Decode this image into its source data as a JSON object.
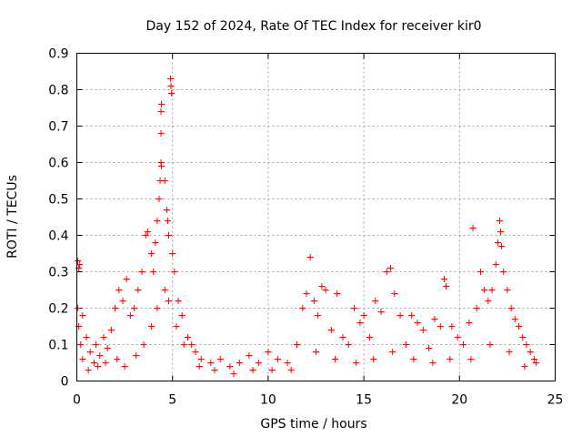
{
  "chart_data": {
    "type": "scatter",
    "title": "Day 152 of 2024, Rate Of TEC Index for receiver kir0",
    "xlabel": "GPS time / hours",
    "ylabel": "ROTI / TECUs",
    "xlim": [
      0,
      25
    ],
    "ylim": [
      0,
      0.9
    ],
    "xticks": [
      "0",
      "5",
      "10",
      "15",
      "20",
      "25"
    ],
    "xtick_values": [
      0,
      5,
      10,
      15,
      20,
      25
    ],
    "yticks": [
      "0",
      "0.1",
      "0.2",
      "0.3",
      "0.4",
      "0.5",
      "0.6",
      "0.7",
      "0.8",
      "0.9"
    ],
    "ytick_values": [
      0,
      0.1,
      0.2,
      0.3,
      0.4,
      0.5,
      0.6,
      0.7,
      0.8,
      0.9
    ],
    "grid": true,
    "marker": "+",
    "color": "#ff0000",
    "series": [
      {
        "name": "kir0",
        "points": [
          [
            0.05,
            0.33
          ],
          [
            0.1,
            0.31
          ],
          [
            0.15,
            0.32
          ],
          [
            0.05,
            0.2
          ],
          [
            0.1,
            0.15
          ],
          [
            0.2,
            0.1
          ],
          [
            0.3,
            0.18
          ],
          [
            0.5,
            0.12
          ],
          [
            0.7,
            0.08
          ],
          [
            0.9,
            0.05
          ],
          [
            1.0,
            0.1
          ],
          [
            1.2,
            0.07
          ],
          [
            1.4,
            0.12
          ],
          [
            1.6,
            0.09
          ],
          [
            1.8,
            0.14
          ],
          [
            2.0,
            0.2
          ],
          [
            2.2,
            0.25
          ],
          [
            2.4,
            0.22
          ],
          [
            2.6,
            0.28
          ],
          [
            2.8,
            0.18
          ],
          [
            3.0,
            0.2
          ],
          [
            3.2,
            0.25
          ],
          [
            3.4,
            0.3
          ],
          [
            3.6,
            0.4
          ],
          [
            3.7,
            0.41
          ],
          [
            3.9,
            0.35
          ],
          [
            4.0,
            0.3
          ],
          [
            4.1,
            0.38
          ],
          [
            4.2,
            0.44
          ],
          [
            4.3,
            0.5
          ],
          [
            4.35,
            0.55
          ],
          [
            4.4,
            0.6
          ],
          [
            4.42,
            0.59
          ],
          [
            4.4,
            0.68
          ],
          [
            4.4,
            0.74
          ],
          [
            4.42,
            0.76
          ],
          [
            4.6,
            0.55
          ],
          [
            4.7,
            0.47
          ],
          [
            4.75,
            0.44
          ],
          [
            4.8,
            0.4
          ],
          [
            4.9,
            0.83
          ],
          [
            4.92,
            0.81
          ],
          [
            4.95,
            0.79
          ],
          [
            5.0,
            0.35
          ],
          [
            5.1,
            0.3
          ],
          [
            5.3,
            0.22
          ],
          [
            5.5,
            0.18
          ],
          [
            5.8,
            0.12
          ],
          [
            6.0,
            0.1
          ],
          [
            6.2,
            0.08
          ],
          [
            6.5,
            0.06
          ],
          [
            7.0,
            0.05
          ],
          [
            7.5,
            0.06
          ],
          [
            8.0,
            0.04
          ],
          [
            8.5,
            0.05
          ],
          [
            9.0,
            0.07
          ],
          [
            9.5,
            0.05
          ],
          [
            10.0,
            0.08
          ],
          [
            10.5,
            0.06
          ],
          [
            11.0,
            0.05
          ],
          [
            11.5,
            0.1
          ],
          [
            11.8,
            0.2
          ],
          [
            12.0,
            0.24
          ],
          [
            12.2,
            0.34
          ],
          [
            12.4,
            0.22
          ],
          [
            12.6,
            0.18
          ],
          [
            12.8,
            0.26
          ],
          [
            13.0,
            0.25
          ],
          [
            13.3,
            0.14
          ],
          [
            13.6,
            0.24
          ],
          [
            13.9,
            0.12
          ],
          [
            14.2,
            0.1
          ],
          [
            14.5,
            0.2
          ],
          [
            14.8,
            0.16
          ],
          [
            15.0,
            0.18
          ],
          [
            15.3,
            0.12
          ],
          [
            15.6,
            0.22
          ],
          [
            15.9,
            0.19
          ],
          [
            16.2,
            0.3
          ],
          [
            16.4,
            0.31
          ],
          [
            16.6,
            0.24
          ],
          [
            16.9,
            0.18
          ],
          [
            17.2,
            0.1
          ],
          [
            17.5,
            0.18
          ],
          [
            17.8,
            0.16
          ],
          [
            18.1,
            0.14
          ],
          [
            18.4,
            0.09
          ],
          [
            18.7,
            0.17
          ],
          [
            19.0,
            0.15
          ],
          [
            19.2,
            0.28
          ],
          [
            19.3,
            0.26
          ],
          [
            19.6,
            0.15
          ],
          [
            19.9,
            0.12
          ],
          [
            20.2,
            0.1
          ],
          [
            20.5,
            0.16
          ],
          [
            20.7,
            0.42
          ],
          [
            20.9,
            0.2
          ],
          [
            21.1,
            0.3
          ],
          [
            21.3,
            0.25
          ],
          [
            21.5,
            0.22
          ],
          [
            21.7,
            0.25
          ],
          [
            21.9,
            0.32
          ],
          [
            22.0,
            0.38
          ],
          [
            22.1,
            0.44
          ],
          [
            22.15,
            0.41
          ],
          [
            22.2,
            0.37
          ],
          [
            22.3,
            0.3
          ],
          [
            22.5,
            0.25
          ],
          [
            22.7,
            0.2
          ],
          [
            22.9,
            0.17
          ],
          [
            23.1,
            0.15
          ],
          [
            23.3,
            0.12
          ],
          [
            23.5,
            0.1
          ],
          [
            23.7,
            0.08
          ],
          [
            23.9,
            0.06
          ],
          [
            24.0,
            0.05
          ],
          [
            0.3,
            0.06
          ],
          [
            0.6,
            0.03
          ],
          [
            1.1,
            0.04
          ],
          [
            1.5,
            0.05
          ],
          [
            2.1,
            0.06
          ],
          [
            2.5,
            0.04
          ],
          [
            3.1,
            0.07
          ],
          [
            3.5,
            0.1
          ],
          [
            3.9,
            0.15
          ],
          [
            4.2,
            0.2
          ],
          [
            4.6,
            0.25
          ],
          [
            4.8,
            0.22
          ],
          [
            5.2,
            0.15
          ],
          [
            5.6,
            0.1
          ],
          [
            6.4,
            0.04
          ],
          [
            7.2,
            0.03
          ],
          [
            8.2,
            0.02
          ],
          [
            9.2,
            0.03
          ],
          [
            10.2,
            0.03
          ],
          [
            11.2,
            0.03
          ],
          [
            12.5,
            0.08
          ],
          [
            13.5,
            0.06
          ],
          [
            14.6,
            0.05
          ],
          [
            15.5,
            0.06
          ],
          [
            16.5,
            0.08
          ],
          [
            17.6,
            0.06
          ],
          [
            18.6,
            0.05
          ],
          [
            19.5,
            0.06
          ],
          [
            20.6,
            0.06
          ],
          [
            21.6,
            0.1
          ],
          [
            22.6,
            0.08
          ],
          [
            23.4,
            0.04
          ]
        ]
      }
    ]
  }
}
